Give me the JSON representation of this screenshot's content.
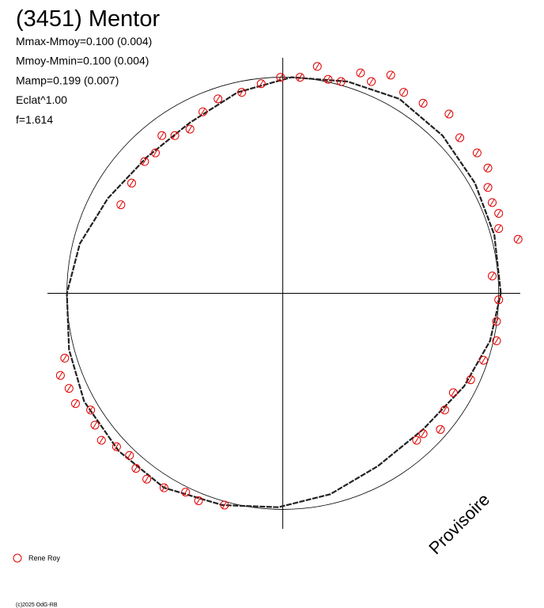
{
  "chart_data": {
    "type": "polar-scatter",
    "title": "(3451) Mentor",
    "stats": [
      "Mmax-Mmoy=0.100 (0.004)",
      "Mmoy-Mmin=0.100 (0.004)",
      "Mamp=0.199 (0.007)",
      "Eclat^1.00",
      "f=1.614"
    ],
    "watermark": "Provisoire",
    "footer": "(c)2025 OdG-RB",
    "xlim": [
      -1.09,
      1.1
    ],
    "ylim": [
      -1.09,
      1.09
    ],
    "series": [
      {
        "name": "Rene Roy",
        "color": "#e00000",
        "x": [
          0.16,
          0.36,
          0.5,
          0.08,
          -0.01,
          -0.1,
          0.21,
          0.27,
          0.41,
          -0.19,
          -0.3,
          -0.37,
          0.56,
          0.65,
          0.77,
          -0.43,
          -0.5,
          -0.56,
          -0.59,
          -0.64,
          -0.7,
          -0.75,
          0.82,
          0.9,
          0.95,
          0.95,
          0.97,
          1.0,
          1.0,
          1.09,
          0.97,
          1.0,
          0.99,
          0.99,
          0.93,
          0.87,
          0.79,
          0.75,
          0.73,
          0.65,
          0.62,
          -1.01,
          -1.03,
          -0.99,
          -0.96,
          -0.89,
          -0.87,
          -0.84,
          -0.77,
          -0.71,
          -0.68,
          -0.63,
          -0.55,
          -0.45,
          -0.39,
          -0.27
        ],
        "y": [
          1.05,
          1.02,
          1.01,
          1.0,
          1.0,
          0.97,
          0.99,
          0.98,
          0.98,
          0.93,
          0.9,
          0.84,
          0.93,
          0.88,
          0.83,
          0.76,
          0.73,
          0.73,
          0.65,
          0.61,
          0.51,
          0.41,
          0.72,
          0.65,
          0.58,
          0.49,
          0.42,
          0.37,
          0.3,
          0.25,
          0.08,
          -0.03,
          -0.13,
          -0.22,
          -0.31,
          -0.4,
          -0.46,
          -0.54,
          -0.63,
          -0.65,
          -0.68,
          -0.3,
          -0.38,
          -0.44,
          -0.51,
          -0.54,
          -0.61,
          -0.68,
          -0.71,
          -0.75,
          -0.81,
          -0.86,
          -0.9,
          -0.92,
          -0.96,
          -0.98
        ]
      }
    ],
    "model": {
      "color": "#222222",
      "x": [
        1.01,
        0.98,
        0.89,
        0.74,
        0.54,
        0.3,
        0.04,
        -0.21,
        -0.43,
        -0.63,
        -0.81,
        -0.94,
        -1.0,
        -0.99,
        -0.92,
        -0.76,
        -0.55,
        -0.28,
        -0.02,
        0.22,
        0.44,
        0.65,
        0.84,
        0.96
      ],
      "y": [
        0.0,
        0.27,
        0.51,
        0.73,
        0.9,
        0.98,
        1.0,
        0.93,
        0.79,
        0.63,
        0.44,
        0.23,
        0.0,
        -0.26,
        -0.5,
        -0.73,
        -0.9,
        -0.98,
        -0.99,
        -0.93,
        -0.8,
        -0.63,
        -0.43,
        -0.22
      ]
    }
  }
}
